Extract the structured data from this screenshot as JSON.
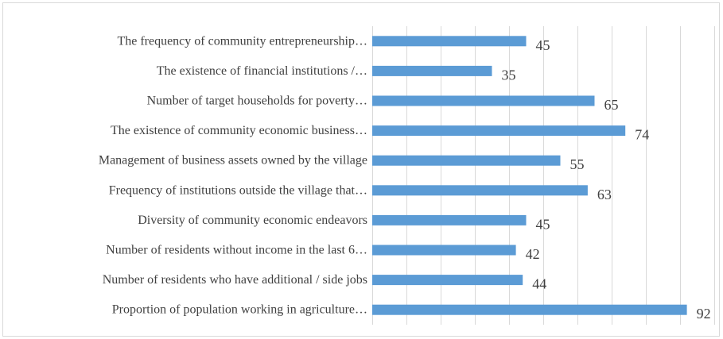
{
  "chart_data": {
    "type": "bar",
    "orientation": "horizontal",
    "title": "",
    "xlabel": "",
    "ylabel": "",
    "categories": [
      "The frequency of community entrepreneurship…",
      "The existence of financial institutions /…",
      "Number of target households for poverty…",
      "The existence of community economic business…",
      "Management of business assets owned by the village",
      "Frequency of institutions outside the village that…",
      "Diversity of community economic endeavors",
      "Number of residents without income in the last 6…",
      "Number of residents who have additional / side jobs",
      "Proportion of population working in agriculture…"
    ],
    "values": [
      45,
      35,
      65,
      74,
      55,
      63,
      45,
      42,
      44,
      92
    ],
    "xlim": [
      0,
      100
    ],
    "x_grid_step": 10,
    "grid": true,
    "axis_ticks_visible": false,
    "data_labels": true,
    "legend": "none",
    "bar_color": "#5b9bd5"
  }
}
